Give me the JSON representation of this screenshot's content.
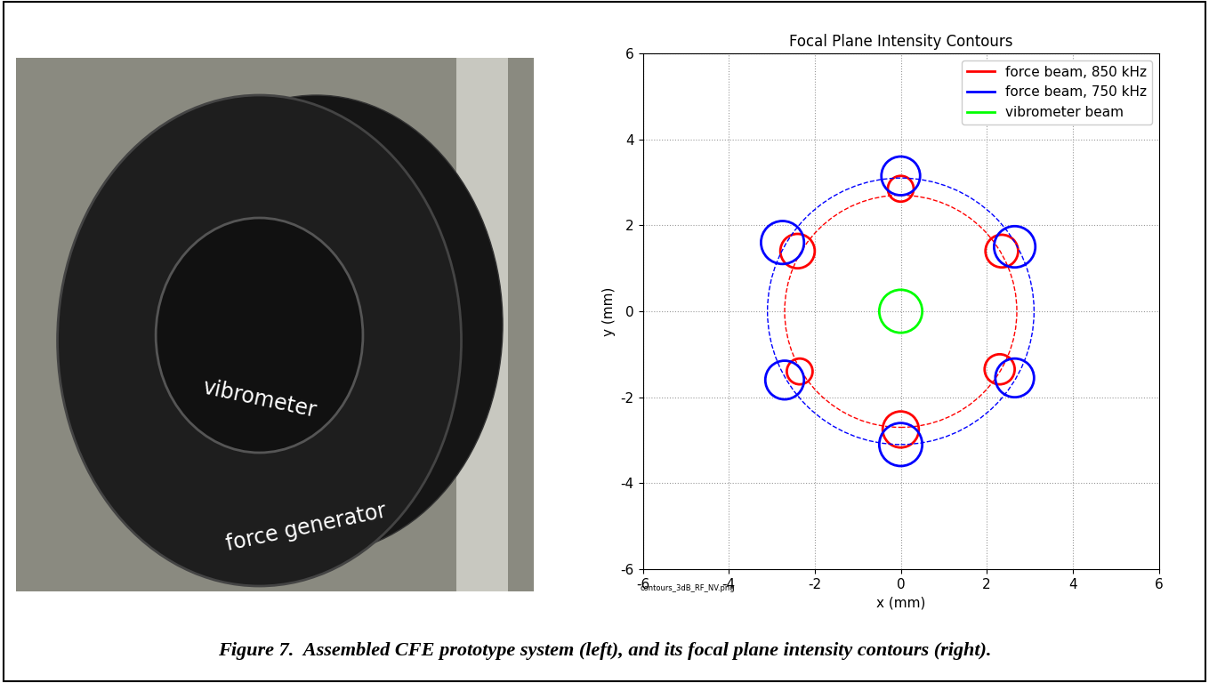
{
  "chart_data": {
    "type": "contour",
    "title": "Focal Plane Intensity Contours",
    "x_label": "x (mm)",
    "y_label": "y (mm)",
    "note": "contours_3dB_RF_NV.png",
    "xlim": [
      -6,
      6
    ],
    "ylim": [
      -6,
      6
    ],
    "xticks": [
      -6,
      -4,
      -2,
      0,
      2,
      4,
      6
    ],
    "yticks": [
      -6,
      -4,
      -2,
      0,
      2,
      4,
      6
    ],
    "grid": true,
    "legend": "upper right",
    "series": [
      {
        "name": "force beam, 850 kHz",
        "color": "#ff0000",
        "line_style": "solid",
        "x": [
          0,
          2.35,
          2.3,
          0,
          -2.35,
          -2.4
        ],
        "y": [
          2.85,
          1.4,
          -1.35,
          -2.75,
          -1.4,
          1.4
        ],
        "r": [
          0.3,
          0.38,
          0.35,
          0.42,
          0.3,
          0.4
        ],
        "ring_r": 2.7,
        "ring_center": [
          0,
          0
        ]
      },
      {
        "name": "force beam, 750 kHz",
        "color": "#0000ff",
        "line_style": "solid",
        "x": [
          0,
          2.65,
          2.65,
          0,
          -2.7,
          -2.75
        ],
        "y": [
          3.15,
          1.5,
          -1.55,
          -3.1,
          -1.6,
          1.6
        ],
        "r": [
          0.45,
          0.48,
          0.45,
          0.5,
          0.45,
          0.5
        ],
        "ring_r": 3.1,
        "ring_center": [
          0,
          0
        ]
      },
      {
        "name": "vibrometer beam",
        "color": "#00ff00",
        "line_style": "solid",
        "x": [
          0
        ],
        "y": [
          0
        ],
        "r": [
          0.5
        ]
      }
    ]
  },
  "photo": {
    "labels": [
      "vibrometer",
      "force generator"
    ]
  },
  "caption": "Figure 7.  Assembled CFE prototype system (left), and its focal plane intensity contours (right)."
}
